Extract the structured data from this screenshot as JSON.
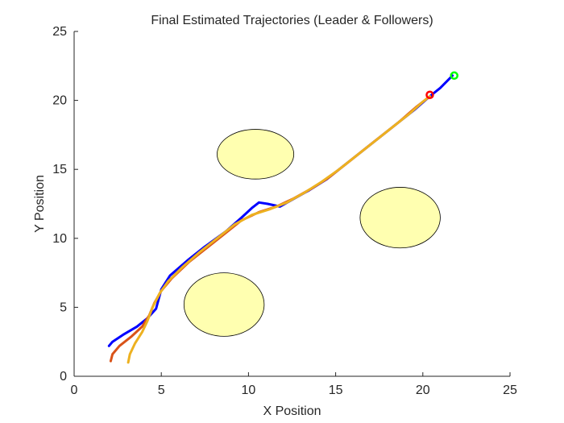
{
  "chart_data": {
    "type": "line",
    "title": "Final Estimated Trajectories (Leader & Followers)",
    "xlabel": "X Position",
    "ylabel": "Y Position",
    "xlim": [
      0,
      25
    ],
    "ylim": [
      0,
      25
    ],
    "xticks": [
      0,
      5,
      10,
      15,
      20,
      25
    ],
    "yticks": [
      0,
      5,
      10,
      15,
      20,
      25
    ],
    "grid": false,
    "obstacles": [
      {
        "cx": 10.4,
        "cy": 16.1,
        "rx": 2.2,
        "ry": 1.8
      },
      {
        "cx": 18.7,
        "cy": 11.5,
        "rx": 2.3,
        "ry": 2.2
      },
      {
        "cx": 8.6,
        "cy": 5.2,
        "rx": 2.3,
        "ry": 2.3
      }
    ],
    "obstacle_fill": "#ffffb0",
    "series": [
      {
        "color": "#0000ff",
        "points": [
          [
            2.0,
            2.2
          ],
          [
            2.2,
            2.5
          ],
          [
            2.8,
            3.0
          ],
          [
            3.6,
            3.6
          ],
          [
            4.2,
            4.2
          ],
          [
            4.7,
            4.9
          ],
          [
            5.0,
            6.3
          ],
          [
            5.5,
            7.3
          ],
          [
            6.5,
            8.4
          ],
          [
            7.5,
            9.4
          ],
          [
            8.7,
            10.5
          ],
          [
            9.6,
            11.5
          ],
          [
            10.2,
            12.2
          ],
          [
            10.6,
            12.6
          ],
          [
            11.1,
            12.5
          ],
          [
            11.8,
            12.3
          ],
          [
            12.5,
            12.8
          ],
          [
            13.5,
            13.5
          ],
          [
            14.5,
            14.3
          ],
          [
            15.5,
            15.3
          ],
          [
            16.5,
            16.3
          ],
          [
            17.5,
            17.3
          ],
          [
            18.5,
            18.3
          ],
          [
            19.5,
            19.3
          ],
          [
            20.4,
            20.3
          ],
          [
            21.0,
            20.9
          ],
          [
            21.7,
            21.8
          ]
        ]
      },
      {
        "color": "#d95319",
        "points": [
          [
            2.1,
            1.1
          ],
          [
            2.2,
            1.6
          ],
          [
            2.6,
            2.2
          ],
          [
            3.3,
            2.9
          ],
          [
            3.9,
            3.6
          ],
          [
            4.3,
            4.4
          ],
          [
            4.6,
            5.3
          ],
          [
            5.0,
            6.2
          ],
          [
            5.6,
            7.1
          ],
          [
            6.6,
            8.3
          ],
          [
            7.6,
            9.3
          ],
          [
            8.6,
            10.3
          ],
          [
            9.6,
            11.3
          ],
          [
            10.6,
            11.9
          ],
          [
            11.6,
            12.3
          ],
          [
            12.6,
            12.9
          ],
          [
            13.6,
            13.6
          ],
          [
            14.6,
            14.4
          ],
          [
            15.6,
            15.4
          ],
          [
            16.6,
            16.4
          ],
          [
            17.6,
            17.4
          ],
          [
            18.6,
            18.4
          ],
          [
            19.6,
            19.5
          ],
          [
            20.4,
            20.3
          ]
        ]
      },
      {
        "color": "#edb120",
        "points": [
          [
            3.1,
            1.0
          ],
          [
            3.2,
            1.6
          ],
          [
            3.5,
            2.4
          ],
          [
            3.9,
            3.2
          ],
          [
            4.2,
            4.0
          ],
          [
            4.5,
            5.0
          ],
          [
            4.9,
            6.0
          ],
          [
            5.4,
            6.9
          ],
          [
            6.2,
            7.9
          ],
          [
            7.2,
            9.0
          ],
          [
            8.2,
            10.0
          ],
          [
            9.2,
            11.0
          ],
          [
            10.2,
            11.7
          ],
          [
            11.2,
            12.1
          ],
          [
            12.2,
            12.6
          ],
          [
            13.2,
            13.3
          ],
          [
            14.2,
            14.1
          ],
          [
            15.2,
            15.0
          ],
          [
            16.2,
            16.0
          ],
          [
            17.2,
            17.0
          ],
          [
            18.2,
            18.0
          ],
          [
            19.2,
            19.0
          ],
          [
            20.0,
            19.9
          ],
          [
            20.4,
            20.3
          ]
        ]
      }
    ],
    "markers": [
      {
        "name": "start",
        "x": 21.8,
        "y": 21.8,
        "color": "#00ff00"
      },
      {
        "name": "end",
        "x": 20.4,
        "y": 20.4,
        "color": "#ff0000"
      }
    ]
  }
}
